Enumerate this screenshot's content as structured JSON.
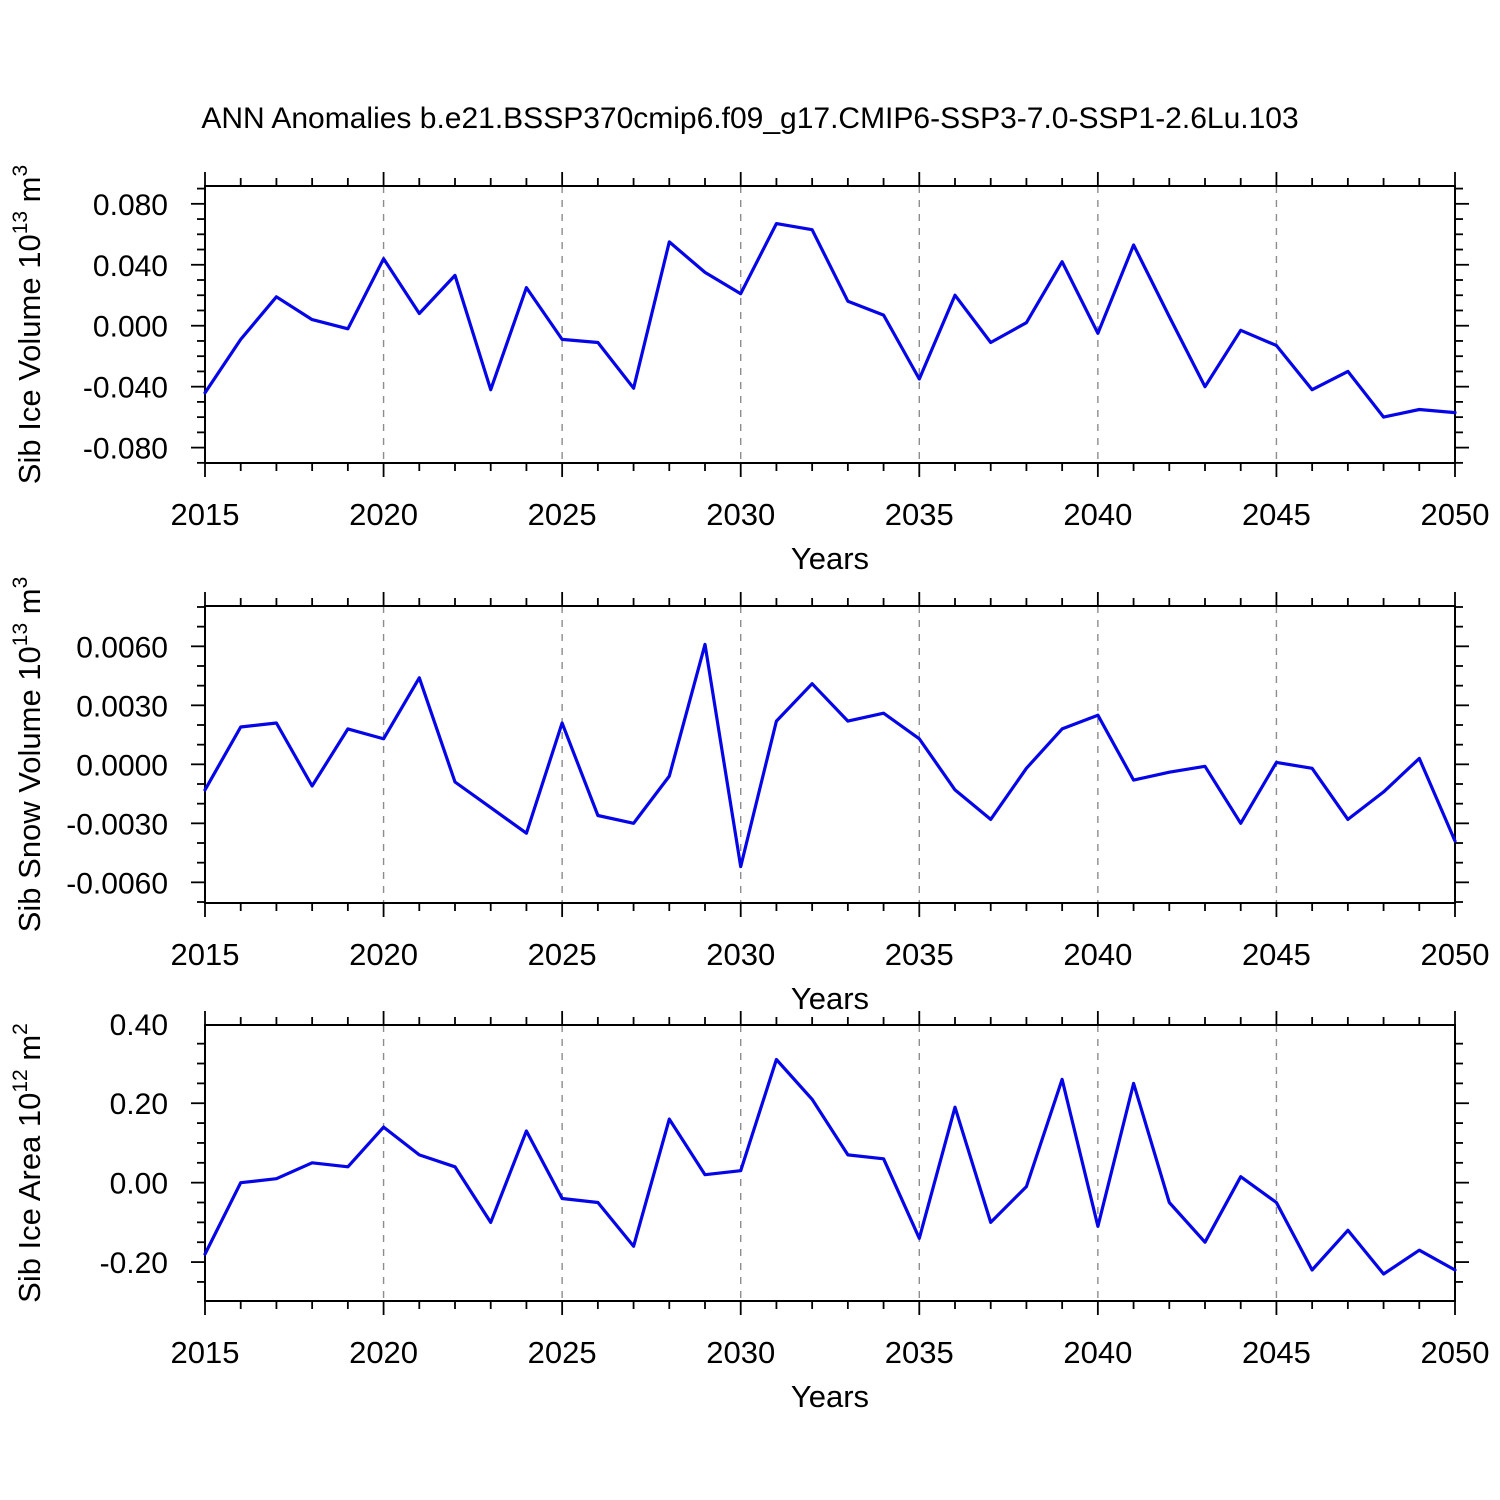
{
  "title": "ANN Anomalies b.e21.BSSP370cmip6.f09_g17.CMIP6-SSP3-7.0-SSP1-2.6Lu.103",
  "xlabel": "Years",
  "colors": {
    "line": "#0505e8",
    "frame": "#000000",
    "grid": "#8c8c8c",
    "text": "#000000"
  },
  "years": [
    2015,
    2016,
    2017,
    2018,
    2019,
    2020,
    2021,
    2022,
    2023,
    2024,
    2025,
    2026,
    2027,
    2028,
    2029,
    2030,
    2031,
    2032,
    2033,
    2034,
    2035,
    2036,
    2037,
    2038,
    2039,
    2040,
    2041,
    2042,
    2043,
    2044,
    2045,
    2046,
    2047,
    2048,
    2049,
    2050
  ],
  "x_axis": {
    "range": [
      2015,
      2050
    ],
    "major_step": 5,
    "minor_step": 1,
    "gridlines": [
      2020,
      2025,
      2030,
      2035,
      2040,
      2045
    ],
    "tick_labels": [
      "2015",
      "2020",
      "2025",
      "2030",
      "2035",
      "2040",
      "2045",
      "2050"
    ]
  },
  "chart_data": [
    {
      "type": "line",
      "name": "sib-ice-volume",
      "ylabel_segments": [
        {
          "t": "Sib Ice Volume 10"
        },
        {
          "t": "13",
          "sup": true
        },
        {
          "t": " m"
        },
        {
          "t": "3",
          "sup": true
        }
      ],
      "ylabel_plain": "Sib Ice Volume 10^13 m^3",
      "ylim": [
        -0.0901,
        0.0917
      ],
      "yticks": [
        {
          "v": 0.08,
          "label": "0.080"
        },
        {
          "v": 0.04,
          "label": "0.040"
        },
        {
          "v": 0.0,
          "label": "0.000"
        },
        {
          "v": -0.04,
          "label": "-0.040"
        },
        {
          "v": -0.08,
          "label": "-0.080"
        }
      ],
      "minor_step": 0.01,
      "values": [
        -0.044,
        -0.009,
        0.019,
        0.004,
        -0.002,
        0.044,
        0.008,
        0.033,
        -0.042,
        0.025,
        -0.009,
        -0.011,
        -0.041,
        0.055,
        0.035,
        0.021,
        0.067,
        0.063,
        0.016,
        0.007,
        -0.035,
        0.02,
        -0.011,
        0.002,
        0.042,
        -0.005,
        0.053,
        0.006,
        -0.04,
        -0.003,
        -0.013,
        -0.042,
        -0.03,
        -0.06,
        -0.055,
        -0.057
      ]
    },
    {
      "type": "line",
      "name": "sib-snow-volume",
      "ylabel_segments": [
        {
          "t": "Sib Snow Volume 10"
        },
        {
          "t": "13",
          "sup": true
        },
        {
          "t": " m"
        },
        {
          "t": "3",
          "sup": true
        }
      ],
      "ylabel_plain": "Sib Snow Volume 10^13 m^3",
      "ylim": [
        -0.00705,
        0.00805
      ],
      "yticks": [
        {
          "v": 0.006,
          "label": "0.0060"
        },
        {
          "v": 0.003,
          "label": "0.0030"
        },
        {
          "v": 0.0,
          "label": "0.0000"
        },
        {
          "v": -0.003,
          "label": "-0.0030"
        },
        {
          "v": -0.006,
          "label": "-0.0060"
        }
      ],
      "minor_step": 0.001,
      "values": [
        -0.0013,
        0.0019,
        0.0021,
        -0.0011,
        0.0018,
        0.0013,
        0.0044,
        -0.0009,
        -0.0022,
        -0.0035,
        0.0021,
        -0.0026,
        -0.003,
        -0.0006,
        0.0061,
        -0.0052,
        0.0022,
        0.0041,
        0.0022,
        0.0026,
        0.0013,
        -0.0013,
        -0.0028,
        -0.0002,
        0.0018,
        0.0025,
        -0.0008,
        -0.0004,
        -0.0001,
        -0.003,
        0.0001,
        -0.0002,
        -0.0028,
        -0.0014,
        0.0003,
        -0.0039
      ]
    },
    {
      "type": "line",
      "name": "sib-ice-area",
      "ylabel_segments": [
        {
          "t": "Sib Ice Area 10"
        },
        {
          "t": "12",
          "sup": true
        },
        {
          "t": " m"
        },
        {
          "t": "2",
          "sup": true
        }
      ],
      "ylabel_plain": "Sib Ice Area 10^12 m^2",
      "ylim": [
        -0.298,
        0.397
      ],
      "yticks": [
        {
          "v": 0.4,
          "label": "0.40"
        },
        {
          "v": 0.2,
          "label": "0.20"
        },
        {
          "v": 0.0,
          "label": "0.00"
        },
        {
          "v": -0.2,
          "label": "-0.20"
        }
      ],
      "minor_step": 0.05,
      "values": [
        -0.18,
        0.0,
        0.01,
        0.05,
        0.04,
        0.14,
        0.07,
        0.04,
        -0.1,
        0.13,
        -0.04,
        -0.05,
        -0.16,
        0.16,
        0.02,
        0.03,
        0.31,
        0.21,
        0.07,
        0.06,
        -0.14,
        0.19,
        -0.1,
        -0.01,
        0.26,
        -0.11,
        0.25,
        -0.05,
        -0.15,
        0.015,
        -0.05,
        -0.22,
        -0.12,
        -0.23,
        -0.17,
        -0.22
      ]
    }
  ]
}
